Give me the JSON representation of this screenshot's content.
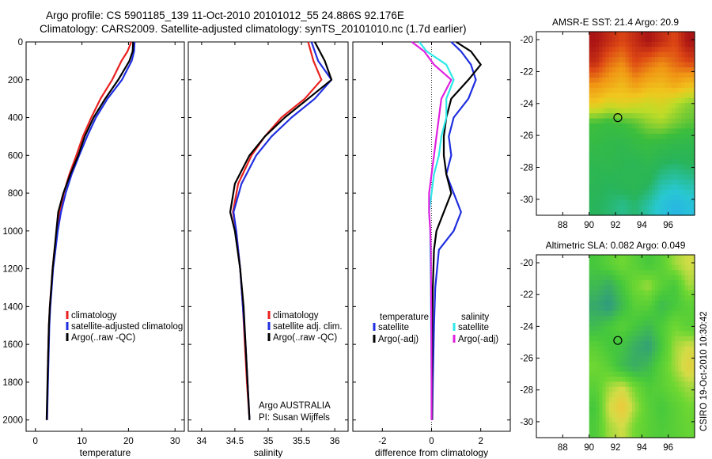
{
  "titles": {
    "line1": "Argo profile: CS 5901185_139 11-Oct-2010 20101012_55 24.886S 92.176E",
    "line2": "Climatology: CARS2009. Satellite-adjusted climatology: synTS_20101010.nc (1.7d earlier)"
  },
  "colors": {
    "climatology": "#e8211f",
    "satellite": "#1f2ee0",
    "argo": "#000000",
    "satellite_salinity": "#2ee8e8",
    "argo_salinity": "#e020e0"
  },
  "chart_data": [
    {
      "type": "line",
      "id": "temperature",
      "xlabel": "temperature",
      "ylabel": "",
      "xlim": [
        -2,
        32
      ],
      "ylim": [
        2060,
        0
      ],
      "xticks": [
        "0",
        "10",
        "20",
        "30"
      ],
      "yticks": [
        "0",
        "200",
        "400",
        "600",
        "800",
        "1000",
        "1200",
        "1400",
        "1600",
        "1800",
        "2000"
      ],
      "legend": [
        "climatology",
        "satellite-adjusted climatolog",
        "Argo(..raw -QC)"
      ],
      "series": [
        {
          "name": "climatology",
          "x": [
            20.6,
            19.8,
            18.5,
            16.5,
            14.0,
            12.0,
            10.2,
            8.8,
            7.3,
            6.1,
            5.2,
            4.6,
            4.1,
            3.7,
            3.4,
            3.1,
            2.9,
            2.7,
            2.5
          ],
          "y": [
            0,
            50,
            100,
            200,
            300,
            400,
            500,
            600,
            700,
            800,
            900,
            1000,
            1100,
            1200,
            1300,
            1400,
            1500,
            1700,
            2000
          ]
        },
        {
          "name": "satellite-adjusted climatology",
          "x": [
            21.3,
            21.2,
            20.7,
            18.6,
            15.5,
            13.0,
            11.1,
            9.4,
            7.8,
            6.5,
            5.5,
            4.8,
            4.3,
            3.8,
            3.5,
            3.2,
            3.0,
            2.8,
            2.5
          ],
          "y": [
            0,
            50,
            100,
            200,
            300,
            400,
            500,
            600,
            700,
            800,
            900,
            1000,
            1100,
            1200,
            1300,
            1400,
            1500,
            1700,
            2000
          ]
        },
        {
          "name": "Argo(..raw -QC)",
          "x": [
            21.0,
            20.9,
            20.2,
            17.8,
            15.0,
            12.5,
            10.6,
            9.2,
            7.5,
            6.0,
            4.9,
            4.5,
            4.1,
            3.7,
            3.4,
            3.1,
            2.9,
            2.7,
            2.4
          ],
          "y": [
            0,
            50,
            100,
            200,
            300,
            400,
            500,
            600,
            700,
            800,
            900,
            1000,
            1100,
            1200,
            1300,
            1400,
            1500,
            1700,
            2000
          ]
        }
      ]
    },
    {
      "type": "line",
      "id": "salinity",
      "xlabel": "salinity",
      "ylabel": "",
      "xlim": [
        33.8,
        36.2
      ],
      "ylim": [
        2060,
        0
      ],
      "xticks": [
        "34",
        "34.5",
        "35",
        "35.5",
        "36"
      ],
      "legend": [
        "climatology",
        "satellite adj. clim.",
        "Argo(..raw -QC)"
      ],
      "annotation": [
        "Argo AUSTRALIA",
        "PI: Susan Wijffels"
      ],
      "series": [
        {
          "name": "climatology",
          "x": [
            35.6,
            35.68,
            35.8,
            35.55,
            35.2,
            34.95,
            34.75,
            34.55,
            34.47,
            34.52,
            34.58,
            34.62,
            34.65,
            34.68,
            34.72
          ],
          "y": [
            0,
            100,
            200,
            300,
            400,
            500,
            600,
            750,
            900,
            1000,
            1200,
            1400,
            1600,
            1800,
            2000
          ]
        },
        {
          "name": "satellite adj. clim.",
          "x": [
            35.65,
            35.75,
            35.95,
            35.7,
            35.35,
            35.05,
            34.82,
            34.6,
            34.48,
            34.52,
            34.58,
            34.62,
            34.66,
            34.69,
            34.72
          ],
          "y": [
            0,
            100,
            200,
            300,
            400,
            500,
            600,
            750,
            900,
            1000,
            1200,
            1400,
            1600,
            1800,
            2000
          ]
        },
        {
          "name": "Argo(..raw -QC)",
          "x": [
            35.7,
            35.85,
            35.95,
            35.6,
            35.25,
            34.95,
            34.72,
            34.5,
            34.43,
            34.5,
            34.58,
            34.63,
            34.66,
            34.69,
            34.72
          ],
          "y": [
            0,
            100,
            200,
            300,
            400,
            500,
            600,
            750,
            900,
            1000,
            1200,
            1400,
            1600,
            1800,
            2000
          ]
        }
      ]
    },
    {
      "type": "line",
      "id": "difference",
      "xlabel": "difference from climatology",
      "ylabel": "",
      "xlim": [
        -3.2,
        3.2
      ],
      "ylim": [
        2060,
        0
      ],
      "xticks": [
        "-2",
        "0",
        "2"
      ],
      "legend_headers": [
        "temperature",
        "salinity"
      ],
      "legend": [
        "satellite",
        "Argo(-adj)",
        "satellite",
        "Argo(-adj)"
      ],
      "series": [
        {
          "name": "temperature satellite",
          "x": [
            0.8,
            1.2,
            1.6,
            1.8,
            1.5,
            0.9,
            0.7,
            0.8,
            0.6,
            0.9,
            1.2,
            0.9,
            0.3,
            0.15,
            0.1,
            0.05,
            0.03
          ],
          "y": [
            0,
            50,
            120,
            200,
            300,
            400,
            500,
            600,
            700,
            800,
            900,
            1000,
            1100,
            1300,
            1500,
            1800,
            2000
          ]
        },
        {
          "name": "temperature Argo(-adj)",
          "x": [
            1.0,
            1.6,
            2.0,
            1.5,
            0.8,
            0.6,
            0.5,
            0.5,
            0.6,
            0.8,
            0.5,
            0.2,
            0.1,
            0.05,
            0.03,
            0.02,
            0.02
          ],
          "y": [
            0,
            50,
            120,
            200,
            300,
            400,
            500,
            600,
            700,
            800,
            900,
            1000,
            1100,
            1300,
            1500,
            1800,
            2000
          ]
        },
        {
          "name": "salinity satellite",
          "x": [
            -0.5,
            -0.2,
            0.6,
            0.9,
            0.6,
            0.6,
            0.4,
            0.3,
            0.1,
            0.0,
            -0.1,
            -0.05,
            -0.05,
            -0.03,
            -0.02,
            0.0,
            0.0
          ],
          "y": [
            0,
            50,
            120,
            200,
            300,
            400,
            500,
            600,
            700,
            800,
            900,
            1000,
            1100,
            1300,
            1500,
            1800,
            2000
          ]
        },
        {
          "name": "salinity Argo(-adj)",
          "x": [
            -0.8,
            -0.3,
            0.1,
            0.8,
            0.4,
            0.3,
            0.2,
            0.1,
            0.0,
            -0.1,
            -0.1,
            -0.05,
            -0.03,
            -0.02,
            -0.01,
            0.0,
            0.0
          ],
          "y": [
            0,
            50,
            120,
            200,
            300,
            400,
            500,
            600,
            700,
            800,
            900,
            1000,
            1100,
            1300,
            1500,
            1800,
            2000
          ]
        }
      ]
    },
    {
      "type": "heatmap",
      "id": "sst_map",
      "title": "AMSR-E SST: 21.4 Argo: 20.9",
      "xlim": [
        86,
        98
      ],
      "ylim": [
        -31,
        -19.5
      ],
      "xticks": [
        "88",
        "90",
        "92",
        "94",
        "96"
      ],
      "yticks": [
        "-20",
        "-22",
        "-24",
        "-26",
        "-28",
        "-30"
      ],
      "data_xrange": [
        90,
        98
      ],
      "float_position": {
        "lon": 92.176,
        "lat": -24.886
      },
      "cells_rows_north_to_south": [
        [
          1.0,
          0.95,
          0.9,
          0.95,
          1.0,
          0.95,
          0.9,
          1.0
        ],
        [
          0.95,
          0.85,
          0.8,
          0.9,
          0.85,
          0.8,
          0.85,
          0.9
        ],
        [
          0.8,
          0.75,
          0.7,
          0.78,
          0.72,
          0.7,
          0.75,
          0.7
        ],
        [
          0.65,
          0.6,
          0.62,
          0.6,
          0.58,
          0.6,
          0.55,
          0.5
        ],
        [
          0.42,
          0.4,
          0.42,
          0.45,
          0.5,
          0.52,
          0.48,
          0.45
        ],
        [
          0.38,
          0.36,
          0.35,
          0.38,
          0.4,
          0.38,
          0.36,
          0.35
        ],
        [
          0.34,
          0.35,
          0.33,
          0.32,
          0.34,
          0.3,
          0.28,
          0.3
        ],
        [
          0.32,
          0.3,
          0.32,
          0.33,
          0.3,
          0.22,
          0.2,
          0.22
        ],
        [
          0.3,
          0.28,
          0.25,
          0.28,
          0.22,
          0.16,
          0.12,
          0.15
        ]
      ],
      "rows_lat": [
        -19.5,
        -31
      ]
    },
    {
      "type": "heatmap",
      "id": "sla_map",
      "title": "Altimetric SLA: 0.082 Argo: 0.049",
      "xlim": [
        86,
        98
      ],
      "ylim": [
        -31,
        -19.5
      ],
      "xticks": [
        "88",
        "90",
        "92",
        "94",
        "96"
      ],
      "yticks": [
        "-20",
        "-22",
        "-24",
        "-26",
        "-28",
        "-30"
      ],
      "data_xrange": [
        90,
        98
      ],
      "float_position": {
        "lon": 92.176,
        "lat": -24.886
      },
      "cells_rows_north_to_south": [
        [
          0.4,
          0.45,
          0.5,
          0.45,
          0.4,
          0.45,
          0.55,
          0.6
        ],
        [
          0.35,
          0.3,
          0.4,
          0.5,
          0.55,
          0.45,
          0.4,
          0.55
        ],
        [
          0.28,
          0.22,
          0.35,
          0.45,
          0.45,
          0.35,
          0.4,
          0.45
        ],
        [
          0.35,
          0.4,
          0.45,
          0.4,
          0.35,
          0.42,
          0.5,
          0.45
        ],
        [
          0.45,
          0.4,
          0.38,
          0.3,
          0.25,
          0.4,
          0.55,
          0.6
        ],
        [
          0.5,
          0.45,
          0.35,
          0.3,
          0.35,
          0.45,
          0.55,
          0.65
        ],
        [
          0.45,
          0.55,
          0.6,
          0.5,
          0.42,
          0.45,
          0.5,
          0.55
        ],
        [
          0.4,
          0.6,
          0.7,
          0.55,
          0.45,
          0.4,
          0.45,
          0.5
        ],
        [
          0.42,
          0.55,
          0.6,
          0.5,
          0.45,
          0.42,
          0.45,
          0.48
        ]
      ],
      "rows_lat": [
        -19.5,
        -31
      ]
    }
  ],
  "side_label": "CSIRO 19-Oct-2010 10:30:42"
}
